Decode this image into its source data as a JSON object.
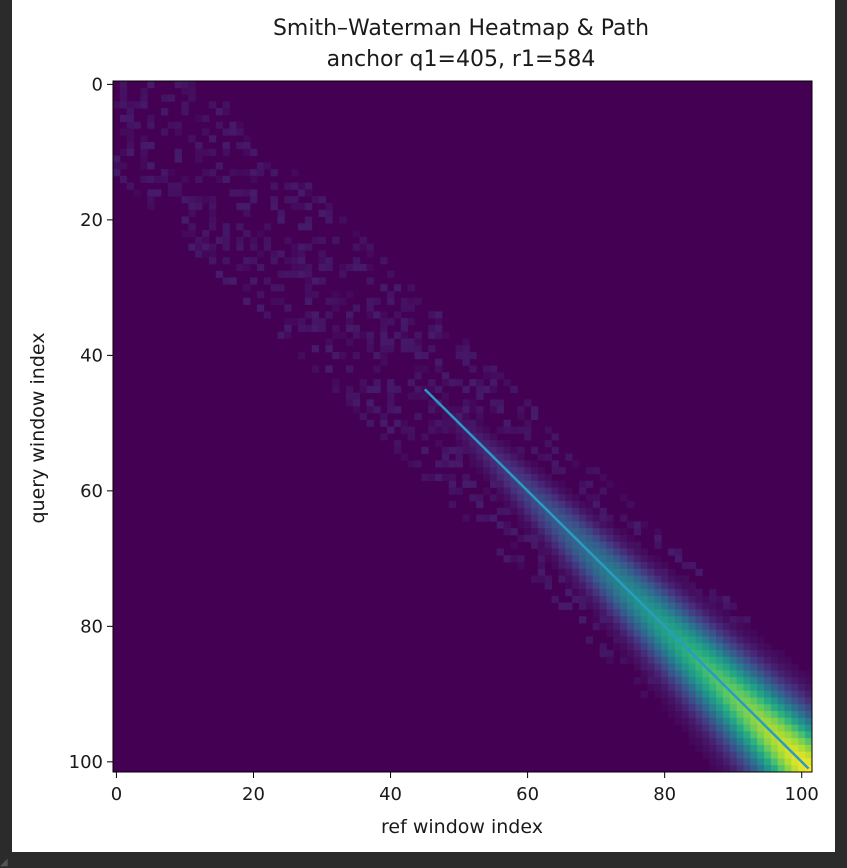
{
  "chart_data": {
    "type": "heatmap",
    "title": "Smith–Waterman Heatmap & Path",
    "subtitle": "anchor q1=405, r1=584",
    "xlabel": "ref window index",
    "ylabel": "query window index",
    "xlim": [
      0,
      101
    ],
    "ylim": [
      101,
      0
    ],
    "x_ticks": [
      "0",
      "20",
      "40",
      "60",
      "80",
      "100"
    ],
    "y_ticks": [
      "0",
      "20",
      "40",
      "60",
      "80",
      "100"
    ],
    "colormap": "viridis",
    "grid": false,
    "path": {
      "color": "#2a9bc4",
      "start": {
        "x": 45,
        "y": 45
      },
      "end": {
        "x": 101,
        "y": 101
      }
    },
    "background_color": "#440154"
  }
}
